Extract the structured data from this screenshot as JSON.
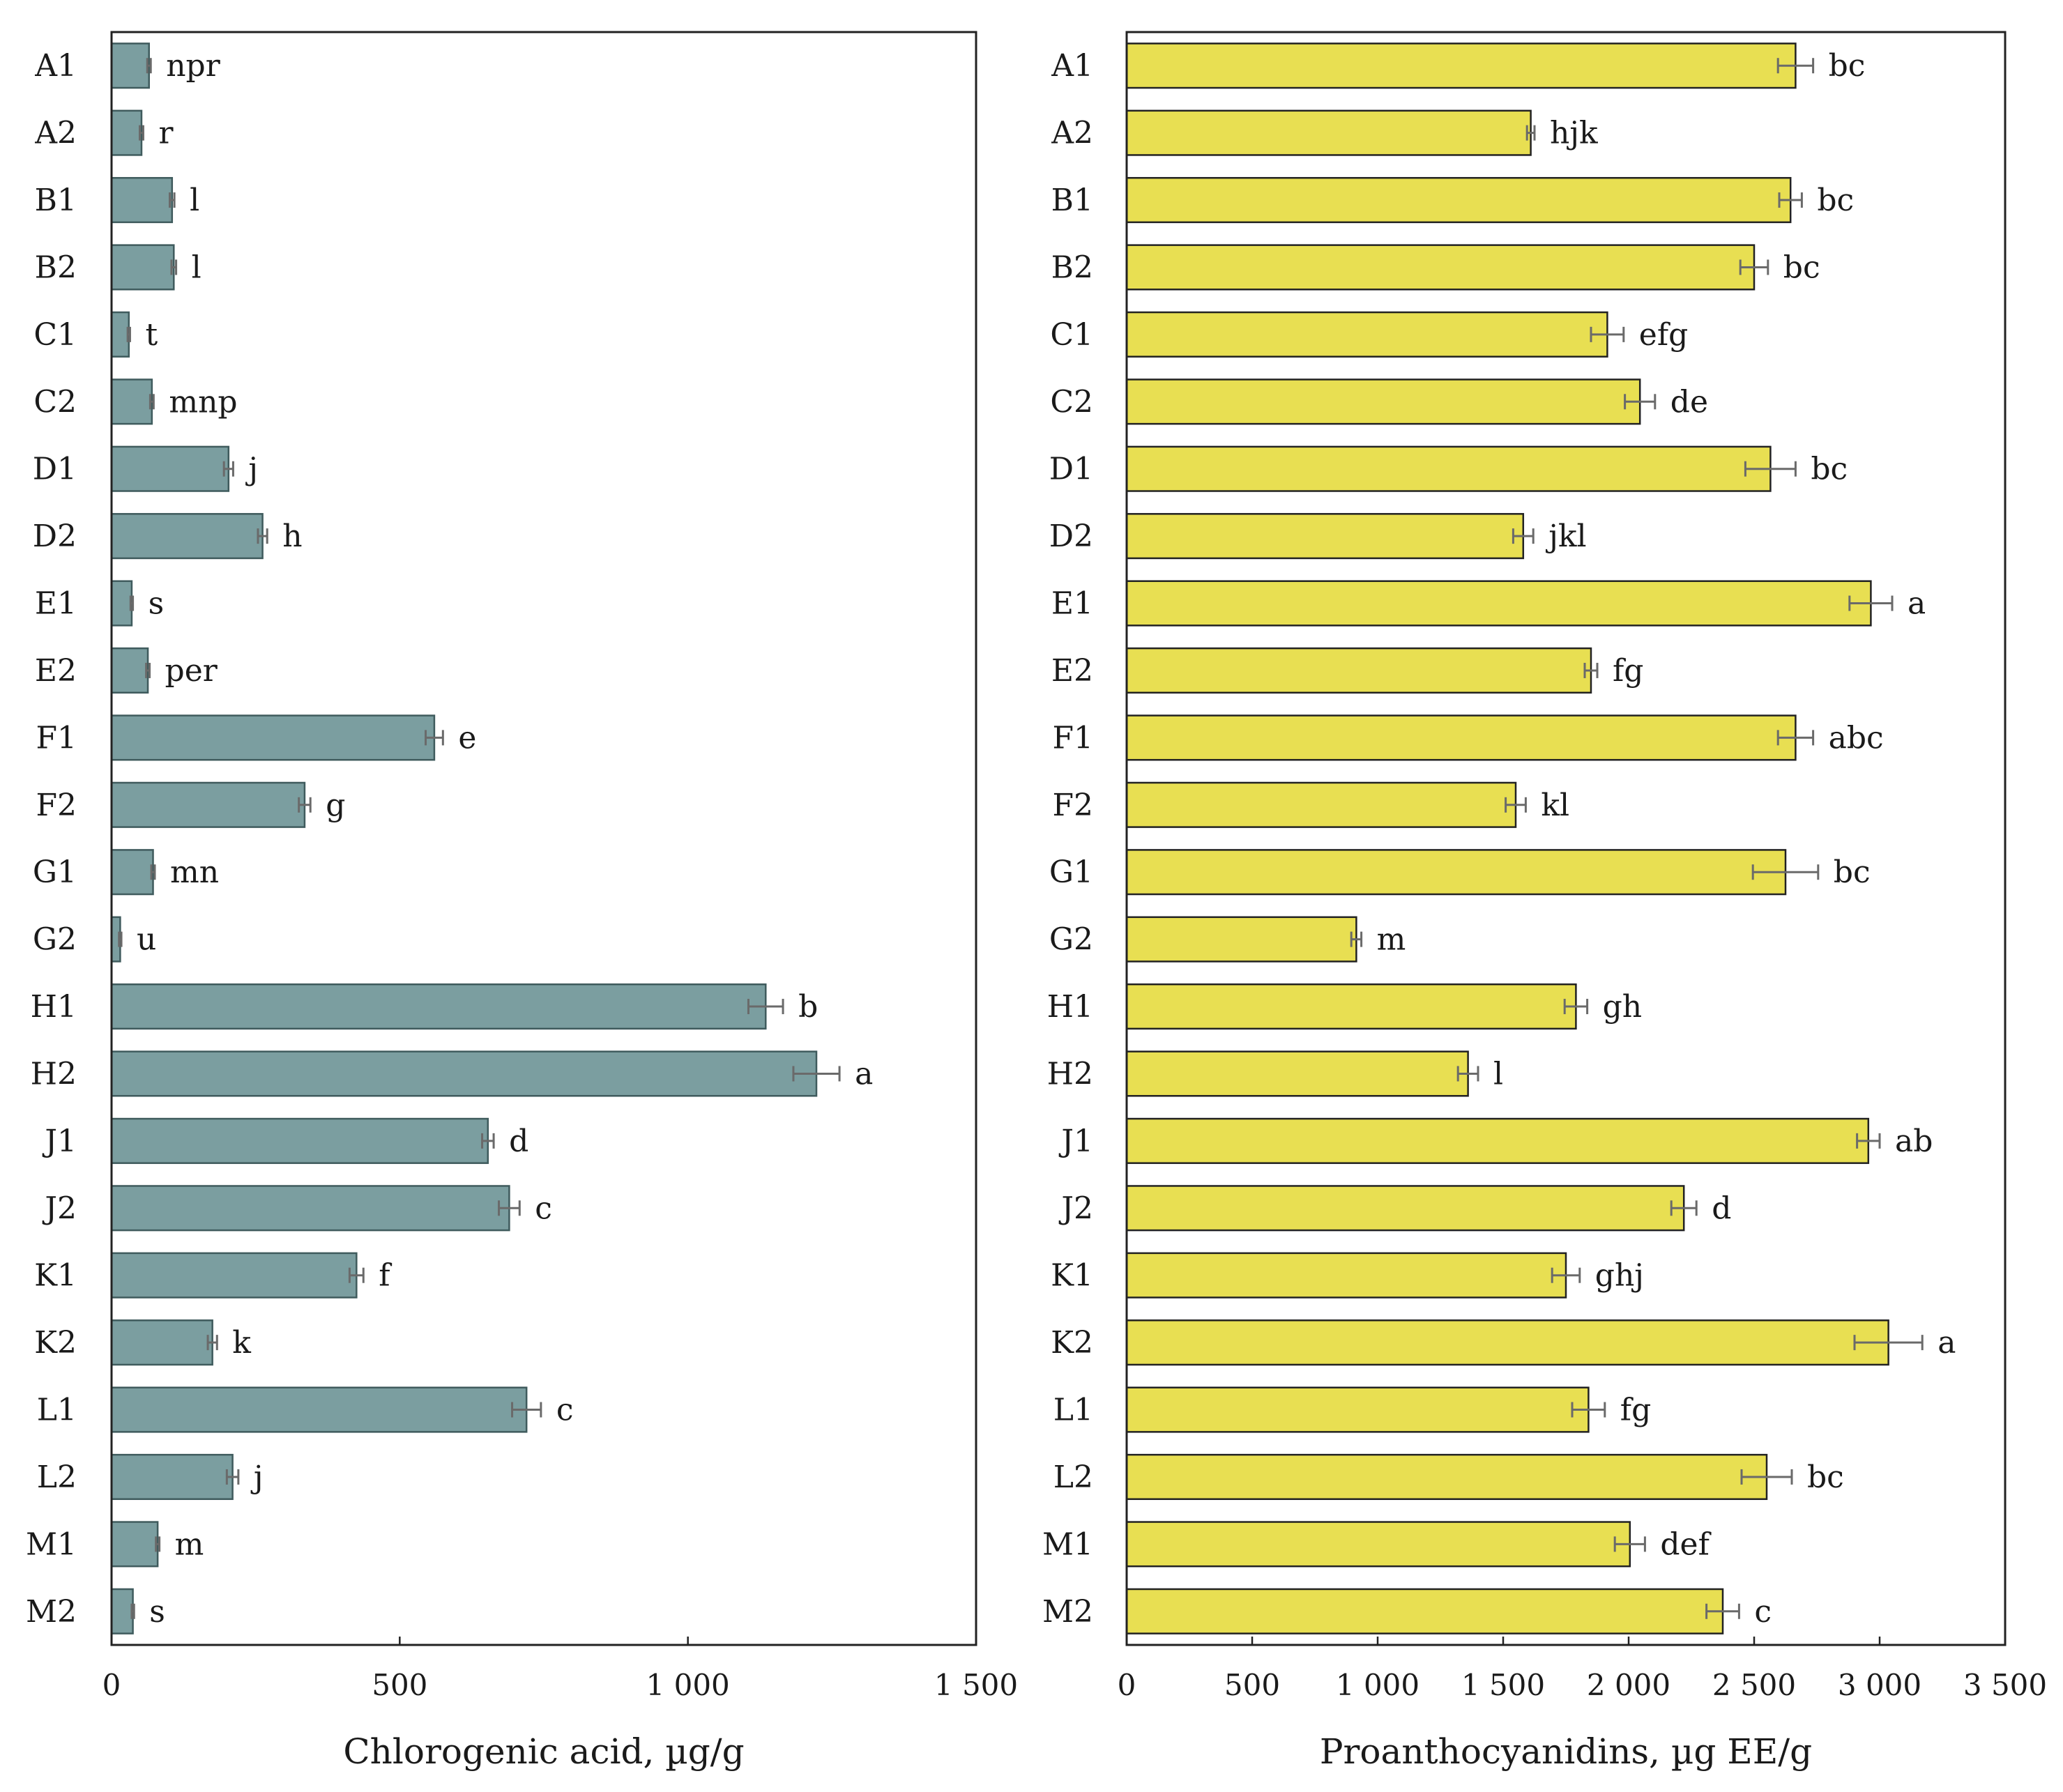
{
  "colors": {
    "left_bar_fill": "#7b9ea0",
    "left_bar_stroke": "#3f5b5d",
    "right_bar_fill": "#e8df52",
    "right_bar_stroke": "#222222",
    "error_bar": "#6a6a6a"
  },
  "chart_data": [
    {
      "type": "bar",
      "orientation": "horizontal",
      "title": "",
      "xlabel": "Chlorogenic acid, µg/g",
      "ylabel": "",
      "xlim": [
        0,
        1500
      ],
      "xticks": [
        0,
        500,
        1000,
        1500
      ],
      "xtick_labels": [
        "0",
        "500",
        "1 000",
        "1 500"
      ],
      "grid": false,
      "categories": [
        "A1",
        "A2",
        "B1",
        "B2",
        "C1",
        "C2",
        "D1",
        "D2",
        "E1",
        "E2",
        "F1",
        "F2",
        "G1",
        "G2",
        "H1",
        "H2",
        "J1",
        "J2",
        "K1",
        "K2",
        "L1",
        "L2",
        "M1",
        "M2"
      ],
      "values": [
        65,
        52,
        105,
        108,
        30,
        70,
        203,
        262,
        35,
        63,
        560,
        335,
        72,
        15,
        1135,
        1223,
        653,
        690,
        425,
        175,
        720,
        210,
        80,
        37
      ],
      "errors": [
        3,
        3,
        4,
        4,
        2,
        3,
        8,
        8,
        2,
        3,
        15,
        10,
        3,
        2,
        30,
        40,
        10,
        18,
        12,
        8,
        25,
        10,
        3,
        2
      ],
      "letters": [
        "npr",
        "r",
        "l",
        "l",
        "t",
        "mnp",
        "j",
        "h",
        "s",
        "per",
        "e",
        "g",
        "mn",
        "u",
        "b",
        "a",
        "d",
        "c",
        "f",
        "k",
        "c",
        "j",
        "m",
        "s"
      ]
    },
    {
      "type": "bar",
      "orientation": "horizontal",
      "title": "",
      "xlabel": "Proanthocyanidins, µg EE/g",
      "ylabel": "",
      "xlim": [
        0,
        3500
      ],
      "xticks": [
        0,
        500,
        1000,
        1500,
        2000,
        2500,
        3000,
        3500
      ],
      "xtick_labels": [
        "0",
        "500",
        "1 000",
        "1 500",
        "2 000",
        "2 500",
        "3 000",
        "3 500"
      ],
      "grid": false,
      "categories": [
        "A1",
        "A2",
        "B1",
        "B2",
        "C1",
        "C2",
        "D1",
        "D2",
        "E1",
        "E2",
        "F1",
        "F2",
        "G1",
        "G2",
        "H1",
        "H2",
        "J1",
        "J2",
        "K1",
        "K2",
        "L1",
        "L2",
        "M1",
        "M2"
      ],
      "values": [
        2665,
        1610,
        2645,
        2500,
        1915,
        2045,
        2565,
        1580,
        2965,
        1850,
        2665,
        1550,
        2625,
        915,
        1790,
        1360,
        2955,
        2220,
        1750,
        3035,
        1840,
        2550,
        2005,
        2375
      ],
      "errors": [
        70,
        15,
        45,
        55,
        65,
        60,
        100,
        40,
        85,
        25,
        70,
        40,
        130,
        20,
        45,
        40,
        45,
        50,
        55,
        135,
        65,
        100,
        60,
        65
      ],
      "letters": [
        "bc",
        "hjk",
        "bc",
        "bc",
        "efg",
        "de",
        "bc",
        "jkl",
        "a",
        "fg",
        "abc",
        "kl",
        "bc",
        "m",
        "gh",
        "l",
        "ab",
        "d",
        "ghj",
        "a",
        "fg",
        "bc",
        "def",
        "c"
      ]
    }
  ]
}
